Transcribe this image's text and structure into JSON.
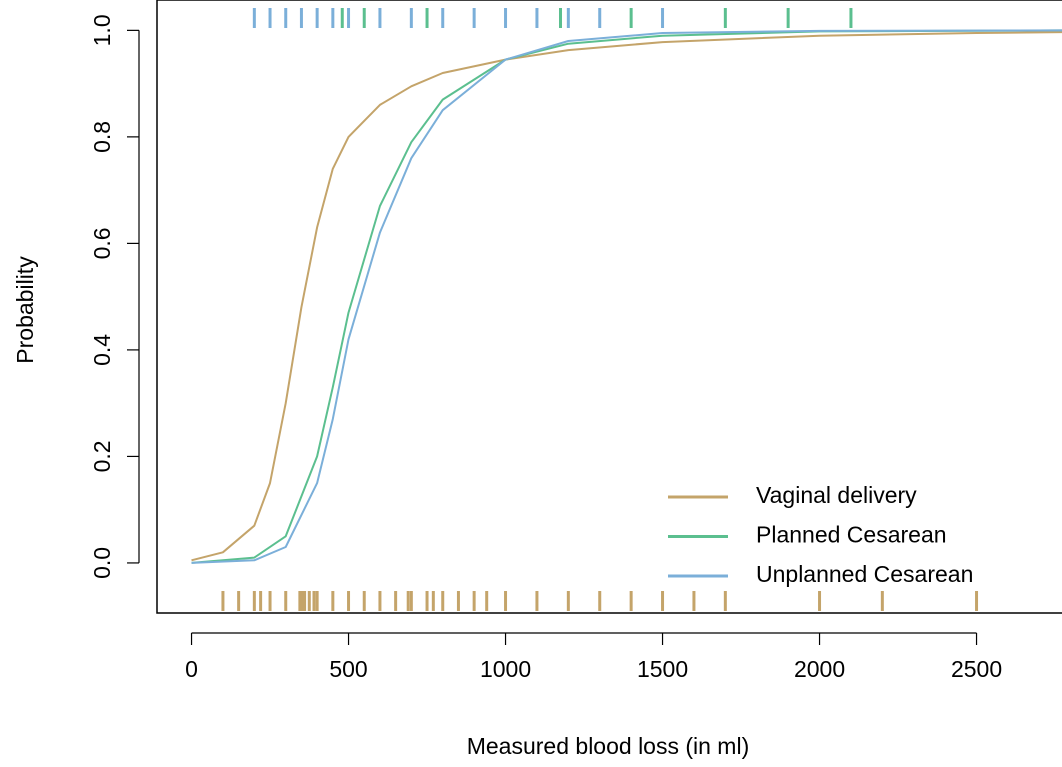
{
  "chart_data": {
    "type": "line",
    "xlabel": "Measured blood loss (in ml)",
    "ylabel": "Probability",
    "xlim": [
      -110,
      2800
    ],
    "ylim": [
      -0.094,
      1.057
    ],
    "xticks": [
      0,
      500,
      1000,
      1500,
      2000,
      2500
    ],
    "yticks": [
      {
        "value": 0,
        "label": "0.0"
      },
      {
        "value": 0.2,
        "label": "0.2"
      },
      {
        "value": 0.4,
        "label": "0.4"
      },
      {
        "value": 0.6,
        "label": "0.6"
      },
      {
        "value": 0.8,
        "label": "0.8"
      },
      {
        "value": 1,
        "label": "1.0"
      }
    ],
    "legend": "bottom-right",
    "series": [
      {
        "name": "Vaginal delivery",
        "color": "#c4a46a",
        "x": [
          0,
          100,
          200,
          250,
          300,
          350,
          400,
          450,
          500,
          600,
          700,
          800,
          1000,
          1200,
          1500,
          2000,
          2500,
          2800
        ],
        "values": [
          0.005,
          0.02,
          0.07,
          0.15,
          0.3,
          0.48,
          0.63,
          0.74,
          0.8,
          0.86,
          0.895,
          0.92,
          0.945,
          0.963,
          0.978,
          0.99,
          0.995,
          0.997
        ]
      },
      {
        "name": "Planned Cesarean",
        "color": "#5bbf8f",
        "x": [
          0,
          200,
          300,
          400,
          450,
          500,
          600,
          700,
          800,
          1000,
          1200,
          1500,
          2000,
          2800
        ],
        "values": [
          0,
          0.01,
          0.05,
          0.2,
          0.33,
          0.47,
          0.67,
          0.79,
          0.87,
          0.945,
          0.975,
          0.99,
          0.998,
          1
        ]
      },
      {
        "name": "Unplanned Cesarean",
        "color": "#7bafd9",
        "x": [
          0,
          200,
          300,
          400,
          450,
          500,
          600,
          700,
          800,
          1000,
          1200,
          1500,
          2000,
          2800
        ],
        "values": [
          0,
          0.005,
          0.03,
          0.15,
          0.27,
          0.42,
          0.62,
          0.76,
          0.85,
          0.945,
          0.98,
          0.995,
          0.999,
          1
        ]
      }
    ],
    "rugs": [
      {
        "side": "bottom",
        "color": "#c4a46a",
        "values": [
          100,
          150,
          200,
          220,
          250,
          300,
          345,
          350,
          355,
          360,
          375,
          390,
          400,
          450,
          500,
          550,
          600,
          650,
          690,
          700,
          750,
          770,
          800,
          850,
          900,
          940,
          1000,
          1100,
          1200,
          1300,
          1400,
          1500,
          1600,
          1700,
          2000,
          2200,
          2500
        ]
      },
      {
        "side": "top",
        "color": "#7bafd9",
        "values": [
          200,
          250,
          300,
          350,
          400,
          450,
          500,
          600,
          700,
          800,
          900,
          1000,
          1100,
          1200,
          1300,
          1500
        ]
      },
      {
        "side": "top",
        "color": "#5bbf8f",
        "values": [
          480,
          550,
          750,
          1175,
          1400,
          1700,
          1900,
          2100
        ]
      }
    ]
  }
}
